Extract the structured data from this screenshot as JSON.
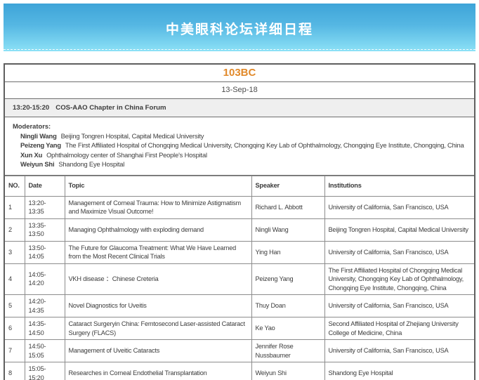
{
  "banner": {
    "title": "中美眼科论坛详细日程"
  },
  "room": "103BC",
  "date": "13-Sep-18",
  "session": {
    "time": "13:20-15:20",
    "title": "COS-AAO Chapter in China Forum"
  },
  "moderators": {
    "label": "Moderators:",
    "items": [
      {
        "name": "Ningli Wang",
        "affiliation": "Beijing Tongren Hospital, Capital Medical University"
      },
      {
        "name": "Peizeng Yang",
        "affiliation": "The First Affiliated Hospital of Chongqing Medical University, Chongqing Key Lab of Ophthalmology, Chongqing Eye Institute, Chongqing, China"
      },
      {
        "name": "Xun Xu",
        "affiliation": "Ophthalmology center of Shanghai First People's Hospital"
      },
      {
        "name": "Weiyun Shi",
        "affiliation": "Shandong Eye Hospital"
      }
    ]
  },
  "table": {
    "headers": [
      "NO.",
      "Date",
      "Topic",
      "Speaker",
      "Institutions"
    ],
    "rows": [
      {
        "no": "1",
        "date": "13:20-13:35",
        "topic": "Management of Corneal Trauma: How to Minimize Astigmatism and Maximize Visual Outcome!",
        "speaker": "Richard L. Abbott",
        "institution": "University of California, San Francisco, USA"
      },
      {
        "no": "2",
        "date": "13:35-13:50",
        "topic": "Managing Ophthalmology with exploding demand",
        "speaker": "Ningli Wang",
        "institution": "Beijing Tongren Hospital, Capital Medical University"
      },
      {
        "no": "3",
        "date": "13:50-14:05",
        "topic": "The Future for Glaucoma Treatment: What We Have Learned from the Most Recent Clinical Trials",
        "speaker": "Ying Han",
        "institution": "University of California, San Francisco, USA"
      },
      {
        "no": "4",
        "date": "14:05-14:20",
        "topic": "VKH disease ：Chinese Creteria",
        "speaker": "Peizeng Yang",
        "institution": "The First Affiliated Hospital of Chongqing Medical University, Chongqing Key Lab of Ophthalmology, Chongqing Eye Institute, Chongqing, China"
      },
      {
        "no": "5",
        "date": "14:20-14:35",
        "topic": "Novel Diagnostics for Uveitis",
        "speaker": "Thuy Doan",
        "institution": "University of California, San Francisco, USA"
      },
      {
        "no": "6",
        "date": "14:35-14:50",
        "topic": "Cataract Surgeryin China: Femtosecond Laser-assisted Cataract Surgery (FLACS)",
        "speaker": "Ke Yao",
        "institution": "Second Affiliated Hospital of Zhejiang University College of Medicine, China"
      },
      {
        "no": "7",
        "date": "14:50-15:05",
        "topic": "Management of Uveitic Cataracts",
        "speaker": "Jennifer Rose Nussbaumer",
        "institution": "University of California, San Francisco, USA"
      },
      {
        "no": "8",
        "date": "15:05-15:20",
        "topic": "Researches in Corneal Endothelial Transplantation",
        "speaker": "Weiyun Shi",
        "institution": "Shandong Eye Hospital"
      }
    ]
  },
  "colors": {
    "banner_gradient_top": "#3ea4d8",
    "banner_gradient_bottom": "#8ce1f6",
    "room_accent_orange": "#e1892a",
    "session_row_bg": "#efefef",
    "outer_border": "#5f5f5f",
    "cell_border": "#8c8c8c",
    "text": "#3c3c3c"
  }
}
